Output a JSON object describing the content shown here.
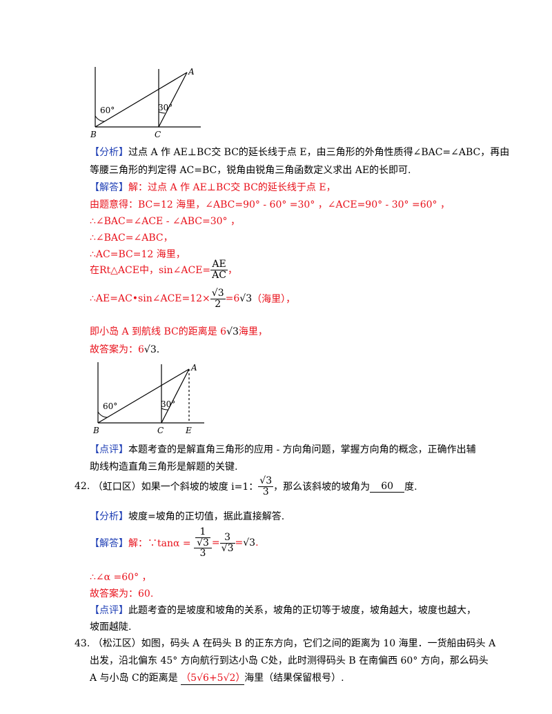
{
  "fig1": {
    "angle_b": "60°",
    "angle_c": "30°",
    "label_a": "A",
    "label_b": "B",
    "label_c": "C"
  },
  "fig2": {
    "angle_b": "60°",
    "angle_c": "30°",
    "label_a": "A",
    "label_b": "B",
    "label_c": "C",
    "label_e": "E"
  },
  "q41": {
    "analysis_tag": "【分析】",
    "analysis_1": "过点 A 作 AE⊥BC交 BC的延长线于点 E，由三角形的外角性质得∠BAC=∠ABC，再由",
    "analysis_2": "等腰三角形的判定得 AC=BC，锐角由锐角三角函数定义求出 AE的长即可.",
    "answer_tag": "【解答】",
    "answer_1": "解：过点 A 作 AE⊥BC交 BC的延长线于点 E，",
    "answer_2": "由题意得：BC=12 海里，∠ABC=90° - 60° =30° ，∠ACE=90° - 30° =60° ，",
    "answer_3": "∴∠BAC=∠ACE - ∠ABC=30° ，",
    "answer_4": "∴∠BAC=∠ABC，",
    "answer_5": "∴AC=BC=12 海里，",
    "answer_6_pre": "在Rt△ACE中，sin∠ACE=",
    "answer_6_num": "AE",
    "answer_6_den": "AC",
    "answer_6_post": "，",
    "answer_7_pre": "∴AE=AC•sin∠ACE=12×",
    "answer_7_num": "√3",
    "answer_7_den": "2",
    "answer_7_mid": "=6",
    "answer_7_post": "（海里），",
    "answer_8_pre": "即小岛 A 到航线 BC的距离是 6",
    "answer_8_post": "海里，",
    "answer_9_pre": "故答案为：6",
    "answer_9_post": ".",
    "comment_tag": "【点评】",
    "comment_1": "本题考查的是解直角三角形的应用 - 方向角问题，掌握方向角的概念，正确作出辅",
    "comment_2": "助线构造直角三角形是解题的关键."
  },
  "q42": {
    "number": "42.",
    "stem_pre": "（虹口区）如果一个斜坡的坡度 i=1：",
    "stem_frac_den": "3",
    "stem_post": "，那么该斜坡的坡角为",
    "blank": "60",
    "stem_end": "度.",
    "analysis_tag": "【分析】",
    "analysis": "坡度=坡角的正切值，据此直接解答.",
    "answer_tag": "【解答】",
    "answer_1_pre": "解：∵tanα =",
    "answer_1_num": "1",
    "answer_1_post": ".",
    "answer_2": "∴∠α =60° ，",
    "answer_3": "故答案为：60.",
    "comment_tag": "【点评】",
    "comment_1": "此题考查的是坡度和坡角的关系，坡角的正切等于坡度，坡角越大，坡度也越大，",
    "comment_2": "坡面越陡."
  },
  "q43": {
    "number": "43.",
    "line_1": "（松江区）如图，码头 A 在码头 B 的正东方向，它们之间的距离为 10 海里．一货船由码头 A",
    "line_2": "出发，沿北偏东 45° 方向航行到达小岛 C处，此时测得码头 B 在南偏西 60° 方向，那么码头",
    "line_3_pre": "A 与小岛 C的距离是",
    "blank_1": "（5",
    "blank_2": "6",
    "blank_3": "+5",
    "blank_4": "2",
    "blank_5": "）",
    "line_3_post": "海里（结果保留根号）."
  },
  "sqrt_radicand": "3"
}
